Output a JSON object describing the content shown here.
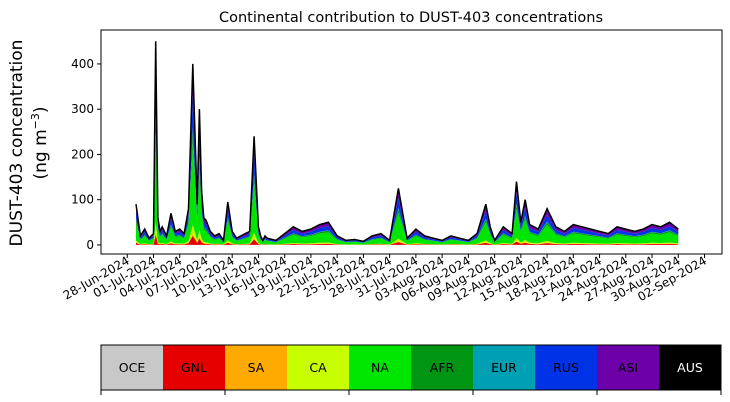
{
  "chart_data": {
    "type": "area",
    "title": "Continental contribution to DUST-403 concentrations",
    "ylabel_line1": "DUST-403 concentration",
    "ylabel_line2_prefix": "(ng m",
    "ylabel_line2_sup": "−3",
    "ylabel_line2_suffix": ")",
    "ylim": [
      -20,
      475
    ],
    "yticks": [
      0,
      100,
      200,
      300,
      400
    ],
    "xlim": [
      "2024-06-25",
      "2024-09-04"
    ],
    "xticks": [
      "28-Jun-2024",
      "01-Jul-2024",
      "04-Jul-2024",
      "07-Jul-2024",
      "10-Jul-2024",
      "13-Jul-2024",
      "16-Jul-2024",
      "19-Jul-2024",
      "22-Jul-2024",
      "25-Jul-2024",
      "28-Jul-2024",
      "31-Jul-2024",
      "03-Aug-2024",
      "06-Aug-2024",
      "09-Aug-2024",
      "12-Aug-2024",
      "15-Aug-2024",
      "18-Aug-2024",
      "21-Aug-2024",
      "24-Aug-2024",
      "27-Aug-2024",
      "30-Aug-2024",
      "02-Sep-2024"
    ],
    "grid": false,
    "series_order": [
      "OCE",
      "GNL",
      "SA",
      "CA",
      "NA",
      "AFR",
      "EUR",
      "RUS",
      "ASI",
      "AUS"
    ],
    "colors": {
      "OCE": "#c8c8c8",
      "GNL": "#e60000",
      "SA": "#ffaa00",
      "CA": "#c8ff00",
      "NA": "#00e600",
      "AFR": "#009614",
      "EUR": "#00a0b4",
      "RUS": "#0032e6",
      "ASI": "#6e00aa",
      "AUS": "#000000"
    },
    "total_series": {
      "name": "AUS",
      "x": [
        "2024-06-29",
        "2024-06-29T12:00",
        "2024-06-30",
        "2024-06-30T12:00",
        "2024-07-01",
        "2024-07-01T06:00",
        "2024-07-01T12:00",
        "2024-07-01T18:00",
        "2024-07-02",
        "2024-07-02T12:00",
        "2024-07-03",
        "2024-07-03T12:00",
        "2024-07-04",
        "2024-07-04T12:00",
        "2024-07-05",
        "2024-07-05T12:00",
        "2024-07-06",
        "2024-07-06T06:00",
        "2024-07-06T12:00",
        "2024-07-06T18:00",
        "2024-07-07",
        "2024-07-07T12:00",
        "2024-07-08",
        "2024-07-08T12:00",
        "2024-07-09",
        "2024-07-09T12:00",
        "2024-07-10",
        "2024-07-10T12:00",
        "2024-07-11",
        "2024-07-11T12:00",
        "2024-07-12",
        "2024-07-12T12:00",
        "2024-07-13",
        "2024-07-13T06:00",
        "2024-07-13T12:00",
        "2024-07-13T18:00",
        "2024-07-14",
        "2024-07-15",
        "2024-07-16",
        "2024-07-17",
        "2024-07-18",
        "2024-07-19",
        "2024-07-20",
        "2024-07-21",
        "2024-07-22",
        "2024-07-23",
        "2024-07-24",
        "2024-07-25",
        "2024-07-26",
        "2024-07-27",
        "2024-07-28",
        "2024-07-29",
        "2024-07-30",
        "2024-07-30T12:00",
        "2024-07-31",
        "2024-08-01",
        "2024-08-02",
        "2024-08-03",
        "2024-08-04",
        "2024-08-05",
        "2024-08-06",
        "2024-08-07",
        "2024-08-08",
        "2024-08-08T12:00",
        "2024-08-09",
        "2024-08-10",
        "2024-08-11",
        "2024-08-11T12:00",
        "2024-08-12",
        "2024-08-12T12:00",
        "2024-08-13",
        "2024-08-14",
        "2024-08-15",
        "2024-08-16",
        "2024-08-17",
        "2024-08-18",
        "2024-08-19",
        "2024-08-20",
        "2024-08-21",
        "2024-08-22",
        "2024-08-23",
        "2024-08-24",
        "2024-08-25",
        "2024-08-26",
        "2024-08-27",
        "2024-08-28",
        "2024-08-29",
        "2024-08-30"
      ],
      "values": [
        90,
        20,
        35,
        15,
        25,
        450,
        60,
        30,
        40,
        20,
        70,
        30,
        35,
        25,
        80,
        400,
        90,
        300,
        120,
        60,
        55,
        30,
        20,
        25,
        10,
        95,
        30,
        15,
        20,
        25,
        30,
        240,
        40,
        20,
        10,
        20,
        15,
        10,
        25,
        40,
        30,
        35,
        45,
        50,
        20,
        10,
        12,
        8,
        20,
        25,
        10,
        125,
        15,
        25,
        35,
        20,
        15,
        10,
        20,
        15,
        10,
        25,
        90,
        40,
        10,
        40,
        25,
        140,
        50,
        100,
        45,
        35,
        80,
        40,
        30,
        45,
        40,
        35,
        30,
        25,
        40,
        35,
        30,
        35,
        45,
        40,
        50,
        35
      ]
    },
    "legend": [
      {
        "label": "OCE",
        "color": "#c8c8c8",
        "text_color": "#000000"
      },
      {
        "label": "GNL",
        "color": "#e60000",
        "text_color": "#000000"
      },
      {
        "label": "SA",
        "color": "#ffaa00",
        "text_color": "#000000"
      },
      {
        "label": "CA",
        "color": "#c8ff00",
        "text_color": "#000000"
      },
      {
        "label": "NA",
        "color": "#00e600",
        "text_color": "#000000"
      },
      {
        "label": "AFR",
        "color": "#009614",
        "text_color": "#000000"
      },
      {
        "label": "EUR",
        "color": "#00a0b4",
        "text_color": "#000000"
      },
      {
        "label": "RUS",
        "color": "#0032e6",
        "text_color": "#000000"
      },
      {
        "label": "ASI",
        "color": "#6e00aa",
        "text_color": "#000000"
      },
      {
        "label": "AUS",
        "color": "#000000",
        "text_color": "#ffffff"
      }
    ]
  }
}
